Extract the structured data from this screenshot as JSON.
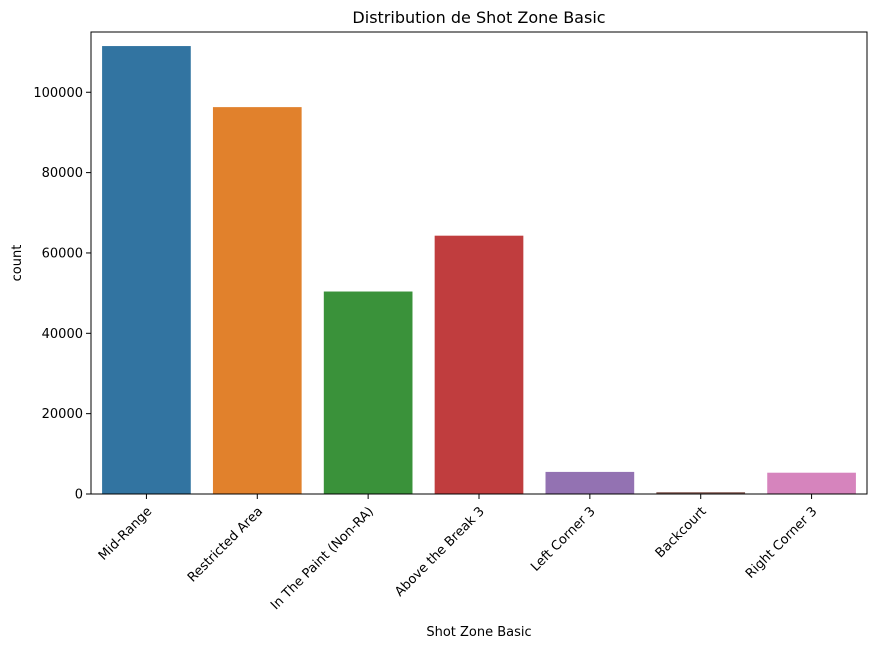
{
  "chart_data": {
    "type": "bar",
    "title": "Distribution de Shot Zone Basic",
    "xlabel": "Shot Zone Basic",
    "ylabel": "count",
    "categories": [
      "Mid-Range",
      "Restricted Area",
      "In The Paint (Non-RA)",
      "Above the Break 3",
      "Left Corner 3",
      "Backcourt",
      "Right Corner 3"
    ],
    "values": [
      111500,
      96300,
      50400,
      64300,
      5500,
      450,
      5300
    ],
    "ylim": [
      0,
      115000
    ],
    "yticks": [
      0,
      20000,
      40000,
      60000,
      80000,
      100000
    ],
    "colors": [
      "#3274a1",
      "#e1812c",
      "#3a923a",
      "#c03d3e",
      "#9372b2",
      "#845b53",
      "#d684bd"
    ],
    "grid": false,
    "legend": "none"
  }
}
